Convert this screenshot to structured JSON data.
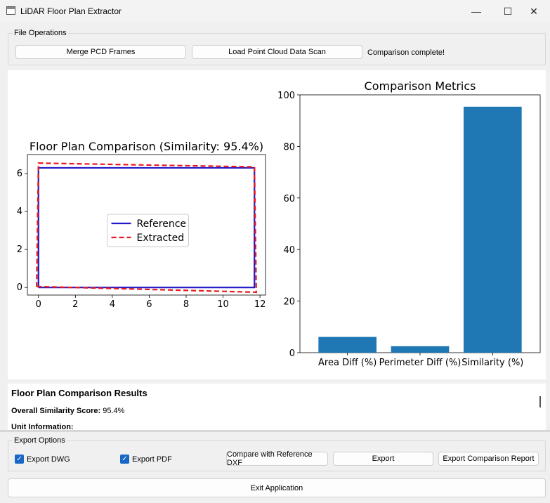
{
  "window": {
    "title": "LiDAR Floor Plan Extractor",
    "minimize_glyph": "—",
    "maximize_glyph": "☐",
    "close_glyph": "✕"
  },
  "file_ops": {
    "group_title": "File Operations",
    "merge_label": "Merge PCD Frames",
    "load_label": "Load Point Cloud Data Scan",
    "status": "Comparison complete!"
  },
  "chart_data": [
    {
      "type": "line",
      "title": "Floor Plan Comparison (Similarity: 95.4%)",
      "xlabel": "",
      "ylabel": "",
      "xlim": [
        -0.6,
        12.3
      ],
      "ylim": [
        -0.4,
        7.0
      ],
      "xticks": [
        0,
        2,
        4,
        6,
        8,
        10,
        12
      ],
      "yticks": [
        0,
        2,
        4,
        6
      ],
      "legend_position": "center",
      "series": [
        {
          "name": "Reference",
          "color": "#1f18c8",
          "style": "solid",
          "x": [
            0.0,
            11.7,
            11.7,
            0.0,
            0.0
          ],
          "y": [
            0.0,
            0.0,
            6.3,
            6.3,
            0.0
          ]
        },
        {
          "name": "Extracted",
          "color": "#e8191c",
          "style": "dashed",
          "x": [
            -0.1,
            11.8,
            11.7,
            0.0,
            -0.1
          ],
          "y": [
            0.05,
            -0.25,
            6.35,
            6.55,
            0.05
          ]
        }
      ]
    },
    {
      "type": "bar",
      "title": "Comparison Metrics",
      "categories": [
        "Area Diff (%)",
        "Perimeter Diff (%)",
        "Similarity (%)"
      ],
      "values": [
        6.1,
        2.5,
        95.4
      ],
      "color": "#1f77b4",
      "ylim": [
        0,
        100
      ],
      "yticks": [
        0,
        20,
        40,
        60,
        80,
        100
      ]
    }
  ],
  "results": {
    "heading": "Floor Plan Comparison Results",
    "score_label": "Overall Similarity Score:",
    "score_value": "95.4%",
    "unit_label": "Unit Information:"
  },
  "export": {
    "group_title": "Export Options",
    "dwg_label": "Export DWG",
    "pdf_label": "Export PDF",
    "dwg_checked": true,
    "pdf_checked": true,
    "check_glyph": "✓",
    "compare_label": "Compare with Reference DXF",
    "export_label": "Export",
    "report_label": "Export Comparison Report"
  },
  "exit_label": "Exit Application"
}
